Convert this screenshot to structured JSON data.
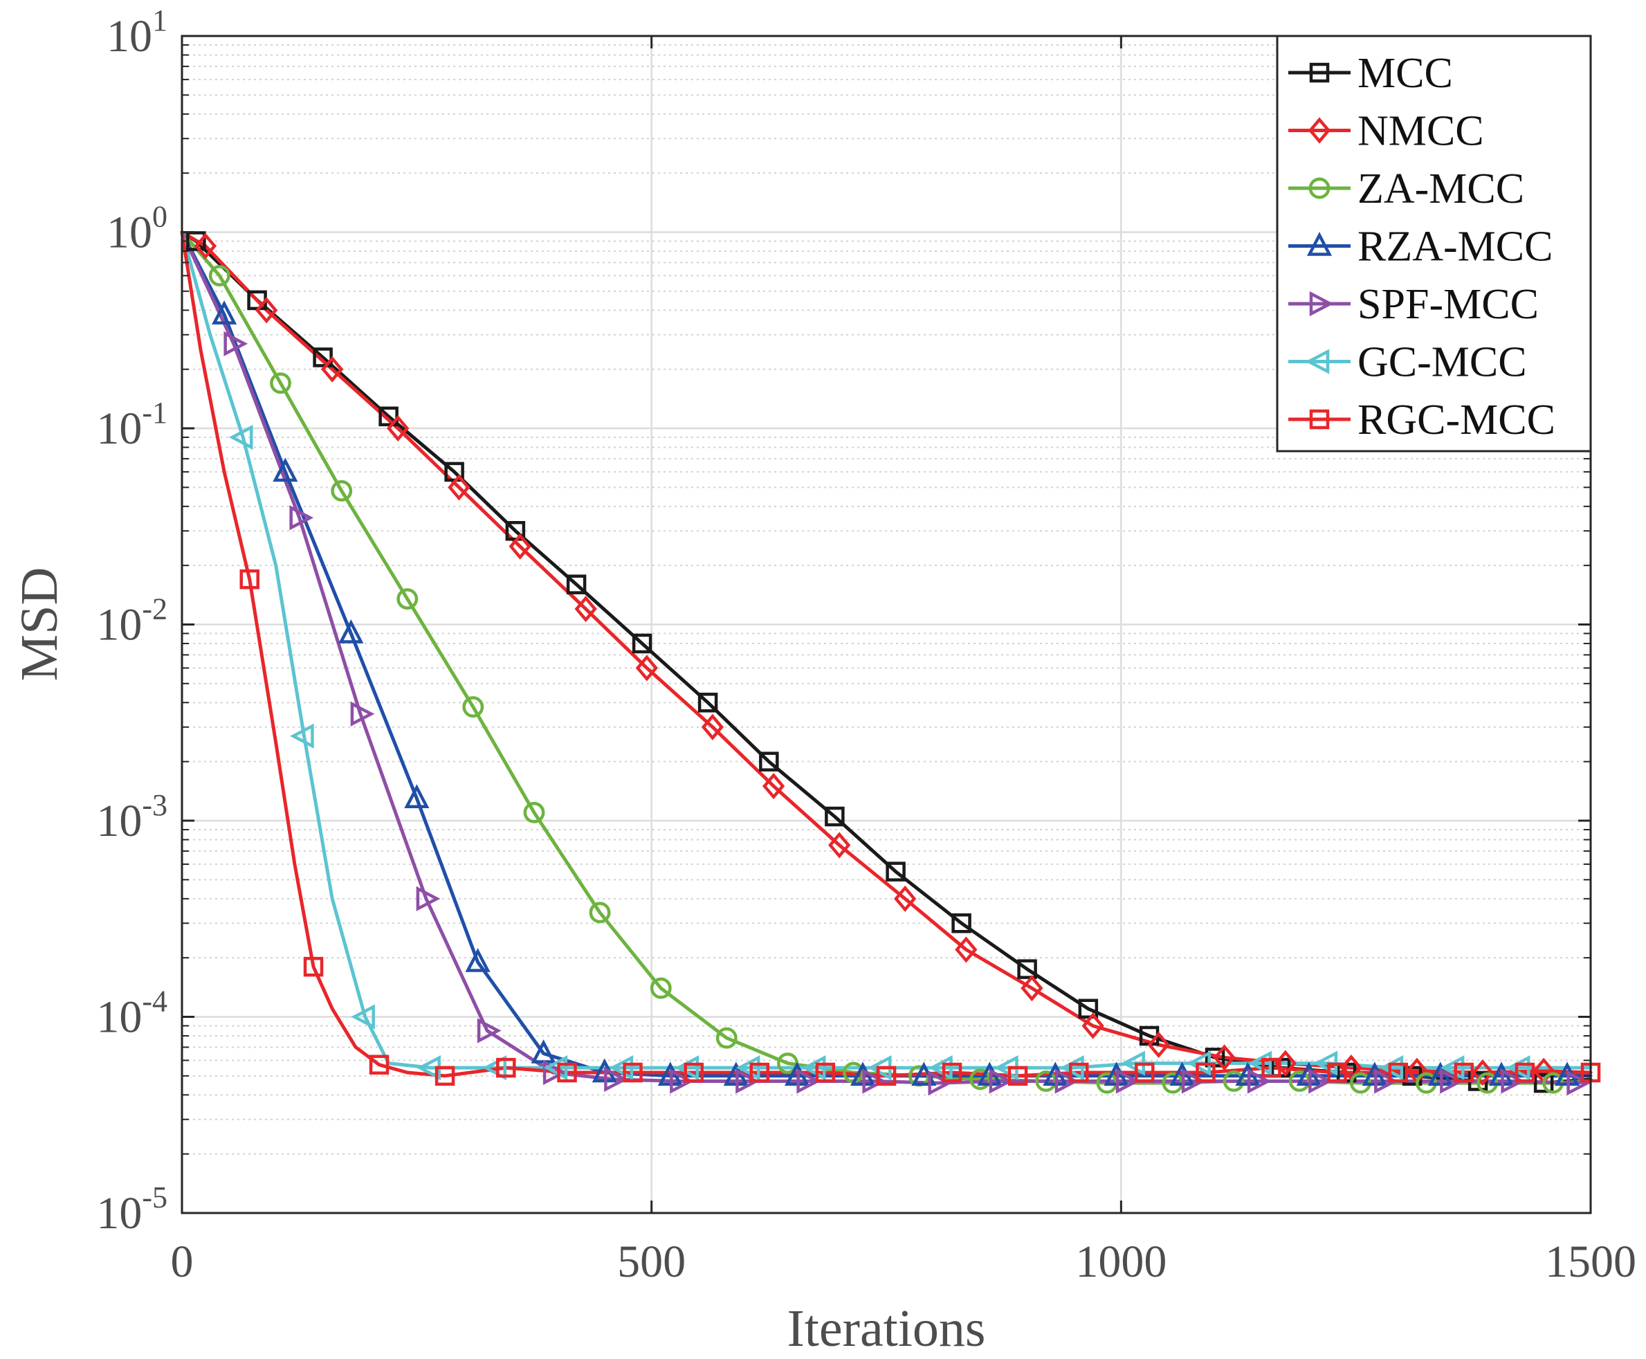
{
  "chart_data": {
    "type": "line",
    "title": "",
    "xlabel": "Iterations",
    "ylabel": "MSD",
    "xlim": [
      0,
      1500
    ],
    "ylim": [
      1e-05,
      10
    ],
    "yscale": "log",
    "grid": true,
    "legend_position": "top-right",
    "x_ticks": [
      {
        "value": 0,
        "label": "0"
      },
      {
        "value": 500,
        "label": "500"
      },
      {
        "value": 1000,
        "label": "1000"
      },
      {
        "value": 1500,
        "label": "1500"
      }
    ],
    "y_ticks": [
      {
        "value": 1e-05,
        "base": "10",
        "exp": "-5"
      },
      {
        "value": 0.0001,
        "base": "10",
        "exp": "-4"
      },
      {
        "value": 0.001,
        "base": "10",
        "exp": "-3"
      },
      {
        "value": 0.01,
        "base": "10",
        "exp": "-2"
      },
      {
        "value": 0.1,
        "base": "10",
        "exp": "-1"
      },
      {
        "value": 1,
        "base": "10",
        "exp": "0"
      },
      {
        "value": 10,
        "base": "10",
        "exp": "1"
      }
    ],
    "series": [
      {
        "name": "MCC",
        "color": "#1a1a1a",
        "marker": "square",
        "x": [
          0,
          15,
          80,
          150,
          220,
          290,
          355,
          420,
          490,
          560,
          625,
          695,
          760,
          830,
          900,
          965,
          1030,
          1100,
          1170,
          1240,
          1310,
          1380,
          1450,
          1500
        ],
        "y": [
          1.0,
          0.9,
          0.45,
          0.23,
          0.115,
          0.06,
          0.03,
          0.016,
          0.008,
          0.004,
          0.002,
          0.00105,
          0.00055,
          0.0003,
          0.000175,
          0.00011,
          8e-05,
          6.2e-05,
          5.5e-05,
          5.2e-05,
          5e-05,
          4.7e-05,
          4.6e-05,
          4.8e-05
        ],
        "markers_x": [
          15,
          80,
          150,
          220,
          290,
          355,
          420,
          490,
          560,
          625,
          695,
          760,
          830,
          900,
          965,
          1030,
          1100,
          1170,
          1240,
          1310,
          1380,
          1450
        ]
      },
      {
        "name": "NMCC",
        "color": "#e8262a",
        "marker": "diamond",
        "x": [
          0,
          25,
          90,
          160,
          230,
          295,
          360,
          430,
          495,
          565,
          630,
          700,
          770,
          835,
          905,
          970,
          1040,
          1110,
          1175,
          1245,
          1315,
          1385,
          1450,
          1500
        ],
        "y": [
          1.0,
          0.85,
          0.4,
          0.2,
          0.1,
          0.05,
          0.025,
          0.012,
          0.006,
          0.003,
          0.0015,
          0.00075,
          0.0004,
          0.00022,
          0.00014,
          9e-05,
          7.2e-05,
          6.2e-05,
          5.8e-05,
          5.5e-05,
          5.3e-05,
          5.2e-05,
          5.3e-05,
          5.2e-05
        ],
        "markers_x": [
          25,
          90,
          160,
          230,
          295,
          360,
          430,
          495,
          565,
          630,
          700,
          770,
          835,
          905,
          970,
          1040,
          1110,
          1175,
          1245,
          1315,
          1385,
          1450
        ]
      },
      {
        "name": "ZA-MCC",
        "color": "#6db33f",
        "marker": "circle",
        "x": [
          0,
          40,
          105,
          170,
          240,
          310,
          375,
          445,
          510,
          580,
          645,
          715,
          785,
          850,
          920,
          985,
          1055,
          1120,
          1190,
          1255,
          1325,
          1390,
          1460,
          1500
        ],
        "y": [
          1.0,
          0.6,
          0.17,
          0.048,
          0.0135,
          0.0038,
          0.0011,
          0.00034,
          0.00014,
          7.8e-05,
          5.8e-05,
          5.2e-05,
          5e-05,
          4.8e-05,
          4.7e-05,
          4.6e-05,
          4.6e-05,
          4.7e-05,
          4.7e-05,
          4.6e-05,
          4.6e-05,
          4.6e-05,
          4.6e-05,
          4.7e-05
        ],
        "markers_x": [
          40,
          105,
          170,
          240,
          310,
          375,
          445,
          510,
          580,
          645,
          715,
          785,
          850,
          920,
          985,
          1055,
          1120,
          1190,
          1255,
          1325,
          1390,
          1460
        ]
      },
      {
        "name": "RZA-MCC",
        "color": "#1f4fa8",
        "marker": "triangle-up",
        "x": [
          0,
          45,
          110,
          180,
          250,
          315,
          385,
          450,
          520,
          590,
          655,
          725,
          790,
          860,
          930,
          995,
          1065,
          1135,
          1200,
          1270,
          1340,
          1405,
          1475,
          1500
        ],
        "y": [
          1.0,
          0.38,
          0.06,
          0.009,
          0.0013,
          0.00019,
          6.5e-05,
          5.2e-05,
          5e-05,
          5e-05,
          5e-05,
          5e-05,
          5e-05,
          5e-05,
          5e-05,
          5e-05,
          5e-05,
          5e-05,
          5e-05,
          5e-05,
          5e-05,
          5e-05,
          5e-05,
          5e-05
        ],
        "markers_x": [
          45,
          110,
          180,
          250,
          315,
          385,
          450,
          520,
          590,
          655,
          725,
          790,
          860,
          930,
          995,
          1065,
          1135,
          1200,
          1270,
          1340,
          1405,
          1475
        ]
      },
      {
        "name": "SPF-MCC",
        "color": "#8e4ea6",
        "marker": "triangle-right",
        "x": [
          0,
          55,
          125,
          190,
          260,
          325,
          395,
          460,
          530,
          600,
          665,
          735,
          805,
          870,
          940,
          1005,
          1075,
          1145,
          1210,
          1280,
          1350,
          1415,
          1485,
          1500
        ],
        "y": [
          1.0,
          0.27,
          0.035,
          0.0035,
          0.0004,
          8.5e-05,
          5.2e-05,
          4.8e-05,
          4.7e-05,
          4.7e-05,
          4.7e-05,
          4.7e-05,
          4.6e-05,
          4.7e-05,
          4.7e-05,
          4.7e-05,
          4.7e-05,
          4.7e-05,
          4.7e-05,
          4.7e-05,
          4.7e-05,
          4.7e-05,
          4.6e-05,
          4.7e-05
        ],
        "markers_x": [
          55,
          125,
          190,
          260,
          325,
          395,
          460,
          530,
          600,
          665,
          735,
          805,
          870,
          940,
          1005,
          1075,
          1145,
          1210,
          1280,
          1350,
          1415,
          1485
        ]
      },
      {
        "name": "GC-MCC",
        "color": "#5bc4d1",
        "marker": "triangle-left",
        "x": [
          0,
          30,
          65,
          100,
          130,
          160,
          195,
          220,
          265,
          335,
          400,
          470,
          540,
          605,
          675,
          745,
          810,
          880,
          950,
          1015,
          1085,
          1150,
          1220,
          1290,
          1355,
          1425,
          1500
        ],
        "y": [
          1.0,
          0.3,
          0.09,
          0.02,
          0.0027,
          0.0004,
          0.0001,
          5.8e-05,
          5.5e-05,
          5.5e-05,
          5.5e-05,
          5.5e-05,
          5.5e-05,
          5.5e-05,
          5.5e-05,
          5.5e-05,
          5.5e-05,
          5.5e-05,
          5.5e-05,
          5.8e-05,
          5.8e-05,
          5.8e-05,
          5.8e-05,
          5.5e-05,
          5.5e-05,
          5.5e-05,
          5.5e-05
        ],
        "markers_x": [
          65,
          130,
          195,
          265,
          335,
          400,
          470,
          540,
          605,
          675,
          745,
          810,
          880,
          950,
          1015,
          1085,
          1150,
          1220,
          1290,
          1355,
          1425
        ]
      },
      {
        "name": "RGC-MCC",
        "color": "#e8262a",
        "marker": "square",
        "x": [
          0,
          20,
          45,
          72,
          100,
          120,
          140,
          160,
          185,
          210,
          240,
          280,
          345,
          410,
          480,
          545,
          615,
          685,
          750,
          820,
          890,
          955,
          1025,
          1090,
          1160,
          1230,
          1295,
          1365,
          1430,
          1500
        ],
        "y": [
          1.0,
          0.25,
          0.06,
          0.017,
          0.0025,
          0.0006,
          0.00018,
          0.00011,
          7e-05,
          5.7e-05,
          5.2e-05,
          5e-05,
          5.5e-05,
          5.2e-05,
          5.2e-05,
          5.2e-05,
          5.2e-05,
          5.2e-05,
          5e-05,
          5.2e-05,
          5e-05,
          5.2e-05,
          5.2e-05,
          5.2e-05,
          5.5e-05,
          5.2e-05,
          5.2e-05,
          5.2e-05,
          5.2e-05,
          5.2e-05
        ],
        "markers_x": [
          72,
          140,
          210,
          280,
          345,
          410,
          480,
          545,
          615,
          685,
          750,
          820,
          890,
          955,
          1025,
          1090,
          1160,
          1230,
          1295,
          1365,
          1430,
          1500
        ]
      }
    ]
  }
}
